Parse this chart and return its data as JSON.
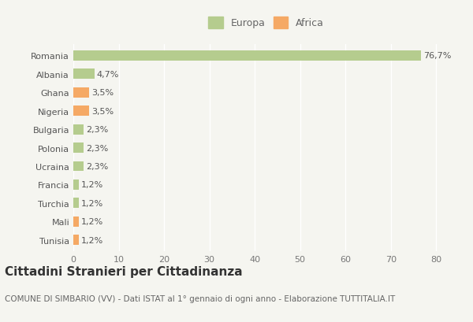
{
  "categories": [
    "Tunisia",
    "Mali",
    "Turchia",
    "Francia",
    "Ucraina",
    "Polonia",
    "Bulgaria",
    "Nigeria",
    "Ghana",
    "Albania",
    "Romania"
  ],
  "values": [
    1.2,
    1.2,
    1.2,
    1.2,
    2.3,
    2.3,
    2.3,
    3.5,
    3.5,
    4.7,
    76.7
  ],
  "labels": [
    "1,2%",
    "1,2%",
    "1,2%",
    "1,2%",
    "2,3%",
    "2,3%",
    "2,3%",
    "3,5%",
    "3,5%",
    "4,7%",
    "76,7%"
  ],
  "colors": [
    "#f5a965",
    "#f5a965",
    "#b5cc8e",
    "#b5cc8e",
    "#b5cc8e",
    "#b5cc8e",
    "#b5cc8e",
    "#f5a965",
    "#f5a965",
    "#b5cc8e",
    "#b5cc8e"
  ],
  "legend_europa_color": "#b5cc8e",
  "legend_africa_color": "#f5a965",
  "title": "Cittadini Stranieri per Cittadinanza",
  "subtitle": "COMUNE DI SIMBARIO (VV) - Dati ISTAT al 1° gennaio di ogni anno - Elaborazione TUTTITALIA.IT",
  "xlim": [
    0,
    85
  ],
  "xticks": [
    0,
    10,
    20,
    30,
    40,
    50,
    60,
    70,
    80
  ],
  "background_color": "#f5f5f0",
  "bar_height": 0.55,
  "title_fontsize": 11,
  "subtitle_fontsize": 7.5,
  "label_fontsize": 8,
  "tick_fontsize": 8,
  "legend_fontsize": 9
}
